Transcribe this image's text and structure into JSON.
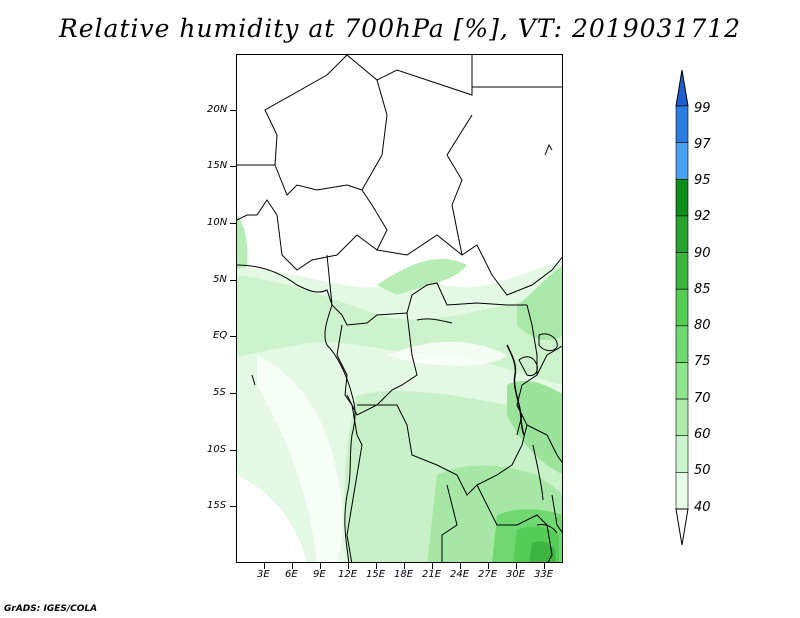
{
  "title": "Relative humidity at 700hPa [%], VT: 2019031712",
  "footer": "GrADS: IGES/COLA",
  "map": {
    "projection": "lat-lon",
    "lon_range": [
      0,
      35
    ],
    "lat_range": [
      -20,
      25
    ],
    "y_axis_labels": [
      "20N",
      "15N",
      "10N",
      "5N",
      "EQ",
      "5S",
      "10S",
      "15S"
    ],
    "x_axis_labels": [
      "3E",
      "6E",
      "9E",
      "12E",
      "15E",
      "18E",
      "21E",
      "24E",
      "27E",
      "30E",
      "33E"
    ]
  },
  "colorbar": {
    "levels": [
      "99",
      "97",
      "95",
      "92",
      "90",
      "85",
      "80",
      "75",
      "70",
      "60",
      "50",
      "40"
    ],
    "colors": [
      "#1f5fd2",
      "#2b7ee0",
      "#4aa0f0",
      "#0e8c1c",
      "#29a32f",
      "#3cb43f",
      "#55cc55",
      "#6fd870",
      "#8fe38f",
      "#aeecae",
      "#cdf5cd",
      "#e8fbe8",
      "#ffffff"
    ],
    "upper_arrow_color": "#1f5fd2",
    "lower_arrow_color": "#ffffff"
  }
}
